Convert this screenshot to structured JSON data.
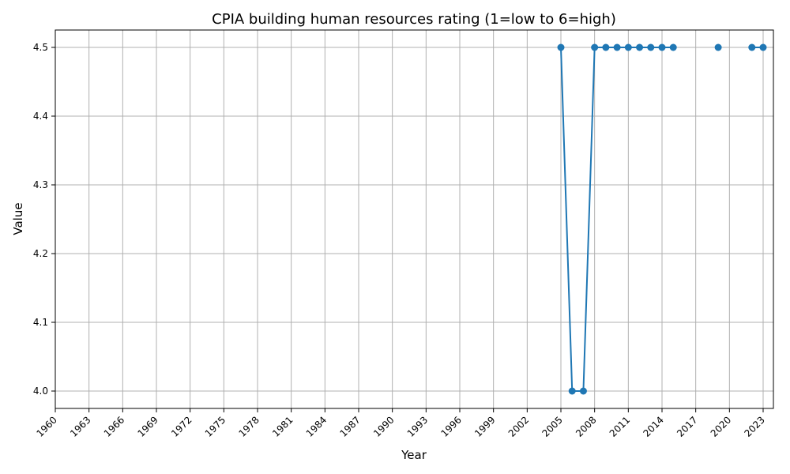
{
  "chart_data": {
    "type": "line",
    "title": "CPIA building human resources rating (1=low to 6=high)",
    "xlabel": "Year",
    "ylabel": "Value",
    "xlim": [
      1960,
      2023
    ],
    "ylim": [
      3.975,
      4.525
    ],
    "x_ticks": [
      1960,
      1963,
      1966,
      1969,
      1972,
      1975,
      1978,
      1981,
      1984,
      1987,
      1990,
      1993,
      1996,
      1999,
      2002,
      2005,
      2008,
      2011,
      2014,
      2017,
      2020,
      2023
    ],
    "y_ticks": [
      4.0,
      4.1,
      4.2,
      4.3,
      4.4,
      4.5
    ],
    "grid": true,
    "color": "#1f77b4",
    "series": [
      {
        "x": [
          2005,
          2006,
          2007,
          2008,
          2009,
          2010,
          2011,
          2012,
          2013,
          2014,
          2015,
          2016,
          2017,
          2018,
          2019,
          2020,
          2021,
          2022,
          2023
        ],
        "values": [
          4.5,
          4.0,
          4.0,
          4.5,
          4.5,
          4.5,
          4.5,
          4.5,
          4.5,
          4.5,
          4.5,
          null,
          null,
          null,
          4.5,
          null,
          null,
          4.5,
          4.5
        ]
      }
    ]
  }
}
